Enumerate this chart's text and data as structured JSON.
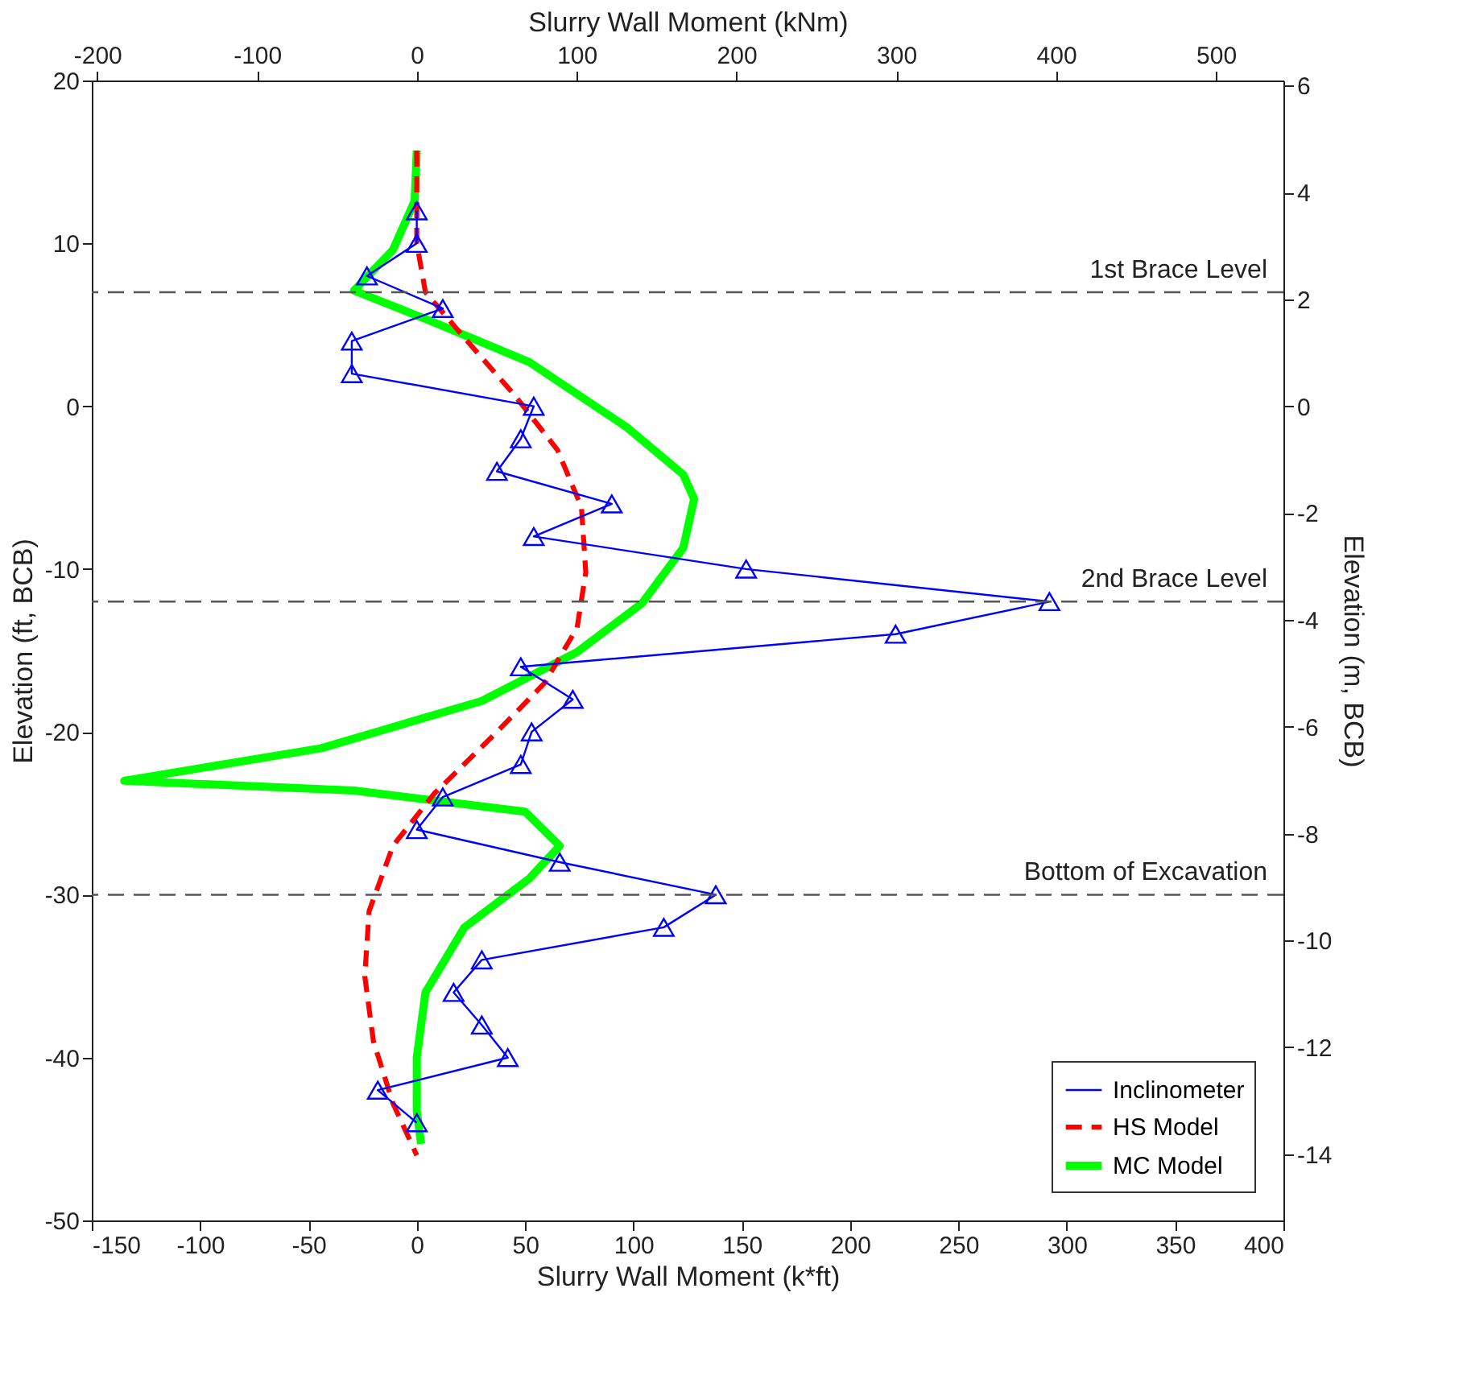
{
  "chart_data": {
    "type": "line",
    "xlabel": "Slurry Wall Moment (k*ft)",
    "ylabel": "Elevation (ft, BCB)",
    "x2label": "Slurry Wall Moment (kNm)",
    "y2label": "Elevation (m, BCB)",
    "xlim": [
      -150,
      400
    ],
    "xticks": [
      -150,
      -100,
      -50,
      0,
      50,
      100,
      150,
      200,
      250,
      300,
      350,
      400
    ],
    "ylim": [
      -50,
      20
    ],
    "yticks": [
      -50,
      -40,
      -30,
      -20,
      -10,
      0,
      10,
      20
    ],
    "x2lim": [
      -203.4,
      542.3
    ],
    "x2ticks": [
      -200,
      -100,
      0,
      100,
      200,
      300,
      400,
      500
    ],
    "y2lim": [
      -15.24,
      6.096
    ],
    "y2ticks": [
      -14,
      -12,
      -10,
      -8,
      -6,
      -4,
      -2,
      0,
      2,
      4,
      6
    ],
    "grid": false,
    "legend": "bottom right",
    "series": [
      {
        "name": "Inclinometer",
        "color": "#0000ff",
        "marker": "triangle",
        "line_style": "solid",
        "x": [
          0,
          0,
          -23,
          12,
          -30,
          -30,
          54,
          48,
          37,
          90,
          54,
          152,
          292,
          221,
          48,
          72,
          53,
          48,
          12,
          0,
          66,
          138,
          114,
          30,
          17,
          30,
          42,
          -18,
          0
        ],
        "values": [
          12,
          10,
          8,
          6,
          4,
          2,
          0,
          -2,
          -4,
          -6,
          -8,
          -10,
          -12,
          -14,
          -16,
          -18,
          -20,
          -22,
          -24,
          -26,
          -28,
          -30,
          -32,
          -34,
          -36,
          -38,
          -40,
          -42,
          -44
        ]
      },
      {
        "name": "HS Model",
        "color": "#ff0000",
        "marker": "none",
        "line_style": "dashed",
        "x": [
          0,
          0,
          4,
          22,
          45,
          65,
          76,
          78,
          74,
          59,
          37,
          8,
          -11,
          -22,
          -24,
          -20,
          -11,
          0
        ],
        "values": [
          15.7,
          10,
          7,
          4.2,
          0.7,
          -2.7,
          -6.2,
          -10.2,
          -13.6,
          -17,
          -20,
          -23.8,
          -27,
          -31,
          -35,
          -39,
          -42.8,
          -46
        ]
      },
      {
        "name": "MC Model",
        "color": "#00ff00",
        "marker": "none",
        "line_style": "solid",
        "x": [
          0,
          -1,
          -11,
          -29,
          7,
          52,
          97,
          123,
          128,
          123,
          104,
          74,
          30,
          -44,
          -135,
          -29,
          50,
          66,
          52,
          22,
          4,
          0,
          0,
          2
        ],
        "values": [
          15.7,
          12.6,
          9.6,
          7.1,
          5.2,
          2.7,
          -1.3,
          -4.2,
          -5.7,
          -8.7,
          -12.1,
          -15.1,
          -18.1,
          -21,
          -23,
          -23.6,
          -24.9,
          -27,
          -29,
          -32,
          -36,
          -40,
          -43.3,
          -45.3
        ]
      }
    ],
    "ref_lines": [
      {
        "axis": "y",
        "value": 7,
        "label": "1st Brace Level",
        "color": "#555555",
        "line_style": "dashed"
      },
      {
        "axis": "y",
        "value": -12,
        "label": "2nd Brace Level",
        "color": "#555555",
        "line_style": "dashed"
      },
      {
        "axis": "y",
        "value": -30,
        "label": "Bottom of Excavation",
        "color": "#555555",
        "line_style": "dashed"
      }
    ]
  }
}
